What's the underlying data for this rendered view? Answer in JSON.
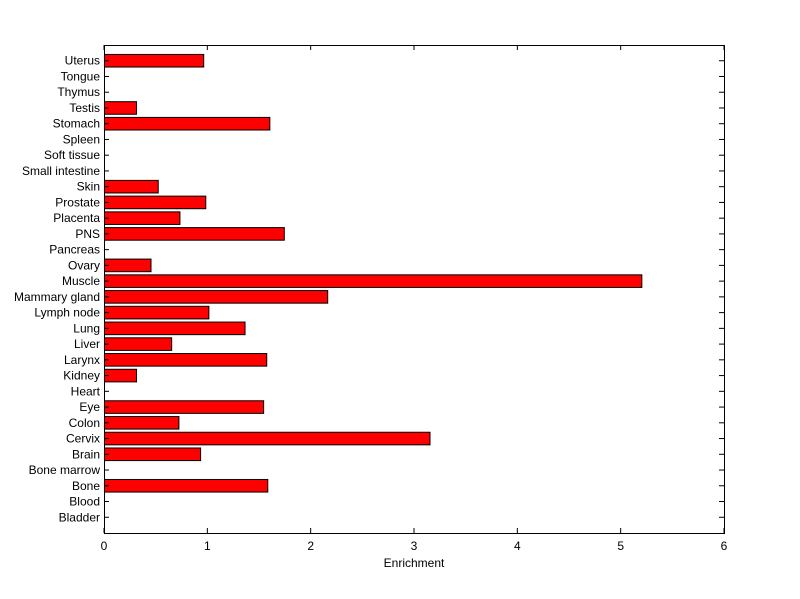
{
  "chart_data": {
    "type": "bar",
    "orientation": "horizontal",
    "title": "",
    "xlabel": "Enrichment",
    "ylabel": "",
    "xlim": [
      0,
      6
    ],
    "xticks": [
      0,
      1,
      2,
      3,
      4,
      5,
      6
    ],
    "grid": false,
    "bar_color": "#ff0000",
    "bar_edge_color": "#000000",
    "categories": [
      "Bladder",
      "Blood",
      "Bone",
      "Bone marrow",
      "Brain",
      "Cervix",
      "Colon",
      "Eye",
      "Heart",
      "Kidney",
      "Larynx",
      "Liver",
      "Lung",
      "Lymph node",
      "Mammary gland",
      "Muscle",
      "Ovary",
      "Pancreas",
      "PNS",
      "Placenta",
      "Prostate",
      "Skin",
      "Small intestine",
      "Soft tissue",
      "Spleen",
      "Stomach",
      "Testis",
      "Thymus",
      "Tongue",
      "Uterus"
    ],
    "values": [
      0,
      0,
      1.58,
      0,
      0.93,
      3.15,
      0.72,
      1.54,
      0,
      0.31,
      1.57,
      0.65,
      1.36,
      1.01,
      2.16,
      5.2,
      0.45,
      0,
      1.74,
      0.73,
      0.98,
      0.52,
      0,
      0,
      0,
      1.6,
      0.31,
      0,
      0,
      0.96
    ]
  }
}
